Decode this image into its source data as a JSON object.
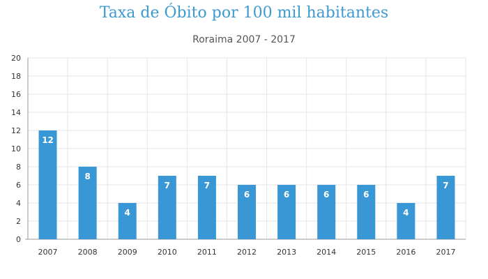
{
  "chart_data": {
    "type": "bar",
    "title": "Taxa de Óbito por 100 mil habitantes",
    "subtitle": "Roraima 2007 - 2017",
    "categories": [
      "2007",
      "2008",
      "2009",
      "2010",
      "2011",
      "2012",
      "2013",
      "2014",
      "2015",
      "2016",
      "2017"
    ],
    "values": [
      12,
      8,
      4,
      7,
      7,
      6,
      6,
      6,
      6,
      4,
      7
    ],
    "data_labels": [
      "12",
      "8",
      "4",
      "7",
      "7",
      "6",
      "6",
      "6",
      "6",
      "4",
      "7"
    ],
    "yticks": [
      "0",
      "2",
      "4",
      "6",
      "8",
      "10",
      "12",
      "14",
      "16",
      "18",
      "20"
    ],
    "ylim": [
      0,
      20
    ],
    "xlabel": "",
    "ylabel": "",
    "grid": true,
    "colors": {
      "bar": "#3a97d6",
      "title": "#3d9ad1",
      "grid": "#e6e6e6",
      "axis": "#999999"
    }
  }
}
